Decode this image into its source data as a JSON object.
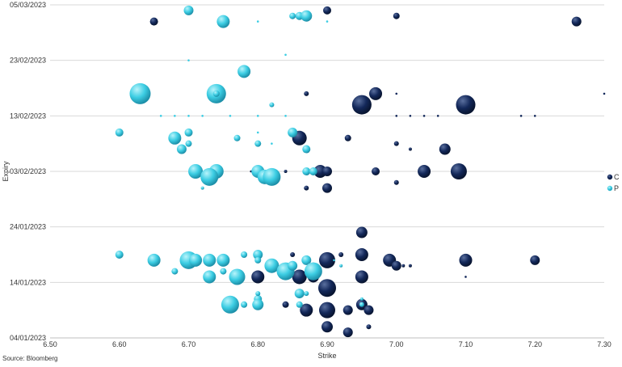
{
  "source": "Source: Bloomberg",
  "colors": {
    "C": "#13285a",
    "P": "#3ccde3"
  },
  "chart_data": {
    "type": "scatter",
    "subtype": "bubble",
    "title": "",
    "xlabel": "Strike",
    "ylabel": "Expiry",
    "xlim": [
      6.5,
      7.3
    ],
    "ylim": [
      "2023-01-04",
      "2023-03-05"
    ],
    "x_ticks": [
      "6.50",
      "6.60",
      "6.70",
      "6.80",
      "6.90",
      "7.00",
      "7.10",
      "7.20",
      "7.30"
    ],
    "y_ticks": [
      "04/01/2023",
      "14/01/2023",
      "24/01/2023",
      "03/02/2023",
      "13/02/2023",
      "23/02/2023",
      "05/03/2023"
    ],
    "grid": "horizontal",
    "legend": {
      "position": "right",
      "entries": [
        "C",
        "P"
      ]
    },
    "series": [
      {
        "name": "C",
        "color": "#13285a",
        "points": [
          {
            "x": 6.65,
            "y": "2023-03-02",
            "s": 5
          },
          {
            "x": 6.9,
            "y": "2023-03-04",
            "s": 5
          },
          {
            "x": 7.0,
            "y": "2023-03-03",
            "s": 4
          },
          {
            "x": 7.26,
            "y": "2023-03-02",
            "s": 6
          },
          {
            "x": 6.87,
            "y": "2023-02-17",
            "s": 3
          },
          {
            "x": 6.95,
            "y": "2023-02-15",
            "s": 12
          },
          {
            "x": 6.97,
            "y": "2023-02-17",
            "s": 8
          },
          {
            "x": 7.1,
            "y": "2023-02-15",
            "s": 12
          },
          {
            "x": 7.0,
            "y": "2023-02-17",
            "s": 1
          },
          {
            "x": 7.3,
            "y": "2023-02-17",
            "s": 1
          },
          {
            "x": 7.0,
            "y": "2023-02-13",
            "s": 1
          },
          {
            "x": 7.02,
            "y": "2023-02-13",
            "s": 1
          },
          {
            "x": 7.04,
            "y": "2023-02-13",
            "s": 1
          },
          {
            "x": 7.06,
            "y": "2023-02-13",
            "s": 1
          },
          {
            "x": 7.18,
            "y": "2023-02-13",
            "s": 1
          },
          {
            "x": 7.2,
            "y": "2023-02-13",
            "s": 1
          },
          {
            "x": 6.86,
            "y": "2023-02-09",
            "s": 9
          },
          {
            "x": 6.93,
            "y": "2023-02-09",
            "s": 4
          },
          {
            "x": 7.0,
            "y": "2023-02-08",
            "s": 3
          },
          {
            "x": 7.02,
            "y": "2023-02-07",
            "s": 2
          },
          {
            "x": 7.07,
            "y": "2023-02-07",
            "s": 7
          },
          {
            "x": 6.87,
            "y": "2023-02-07",
            "s": 4
          },
          {
            "x": 6.89,
            "y": "2023-02-03",
            "s": 8
          },
          {
            "x": 6.9,
            "y": "2023-02-03",
            "s": 6
          },
          {
            "x": 6.97,
            "y": "2023-02-03",
            "s": 5
          },
          {
            "x": 7.04,
            "y": "2023-02-03",
            "s": 8
          },
          {
            "x": 7.09,
            "y": "2023-02-03",
            "s": 10
          },
          {
            "x": 7.0,
            "y": "2023-02-01",
            "s": 3
          },
          {
            "x": 6.9,
            "y": "2023-01-31",
            "s": 6
          },
          {
            "x": 6.87,
            "y": "2023-01-31",
            "s": 3
          },
          {
            "x": 6.84,
            "y": "2023-02-03",
            "s": 2
          },
          {
            "x": 6.79,
            "y": "2023-02-03",
            "s": 1
          },
          {
            "x": 6.95,
            "y": "2023-01-23",
            "s": 7
          },
          {
            "x": 6.95,
            "y": "2023-01-19",
            "s": 8
          },
          {
            "x": 6.99,
            "y": "2023-01-18",
            "s": 8
          },
          {
            "x": 7.0,
            "y": "2023-01-17",
            "s": 6
          },
          {
            "x": 7.1,
            "y": "2023-01-18",
            "s": 8
          },
          {
            "x": 7.2,
            "y": "2023-01-18",
            "s": 6
          },
          {
            "x": 6.9,
            "y": "2023-01-18",
            "s": 10
          },
          {
            "x": 6.92,
            "y": "2023-01-19",
            "s": 3
          },
          {
            "x": 6.85,
            "y": "2023-01-19",
            "s": 3
          },
          {
            "x": 6.88,
            "y": "2023-01-17",
            "s": 4
          },
          {
            "x": 6.86,
            "y": "2023-01-15",
            "s": 9
          },
          {
            "x": 6.88,
            "y": "2023-01-15",
            "s": 7
          },
          {
            "x": 6.95,
            "y": "2023-01-15",
            "s": 8
          },
          {
            "x": 6.8,
            "y": "2023-01-15",
            "s": 8
          },
          {
            "x": 6.9,
            "y": "2023-01-13",
            "s": 11
          },
          {
            "x": 6.9,
            "y": "2023-01-09",
            "s": 10
          },
          {
            "x": 6.87,
            "y": "2023-01-09",
            "s": 8
          },
          {
            "x": 6.93,
            "y": "2023-01-09",
            "s": 6
          },
          {
            "x": 6.95,
            "y": "2023-01-10",
            "s": 7
          },
          {
            "x": 6.96,
            "y": "2023-01-09",
            "s": 6
          },
          {
            "x": 6.9,
            "y": "2023-01-06",
            "s": 7
          },
          {
            "x": 6.93,
            "y": "2023-01-05",
            "s": 6
          },
          {
            "x": 6.96,
            "y": "2023-01-06",
            "s": 3
          },
          {
            "x": 6.84,
            "y": "2023-01-10",
            "s": 4
          },
          {
            "x": 7.01,
            "y": "2023-01-17",
            "s": 2
          },
          {
            "x": 7.02,
            "y": "2023-01-17",
            "s": 2
          },
          {
            "x": 7.1,
            "y": "2023-01-15",
            "s": 1
          }
        ]
      },
      {
        "name": "P",
        "color": "#3ccde3",
        "points": [
          {
            "x": 6.7,
            "y": "2023-03-04",
            "s": 6
          },
          {
            "x": 6.75,
            "y": "2023-03-02",
            "s": 8
          },
          {
            "x": 6.8,
            "y": "2023-03-02",
            "s": 1
          },
          {
            "x": 6.85,
            "y": "2023-03-03",
            "s": 4
          },
          {
            "x": 6.86,
            "y": "2023-03-03",
            "s": 5
          },
          {
            "x": 6.87,
            "y": "2023-03-03",
            "s": 7
          },
          {
            "x": 6.9,
            "y": "2023-03-02",
            "s": 1
          },
          {
            "x": 6.84,
            "y": "2023-02-24",
            "s": 1
          },
          {
            "x": 6.7,
            "y": "2023-02-23",
            "s": 1
          },
          {
            "x": 6.78,
            "y": "2023-02-21",
            "s": 8
          },
          {
            "x": 6.63,
            "y": "2023-02-17",
            "s": 13
          },
          {
            "x": 6.74,
            "y": "2023-02-17",
            "s": 12
          },
          {
            "x": 6.74,
            "y": "2023-02-17",
            "s": 4
          },
          {
            "x": 6.82,
            "y": "2023-02-15",
            "s": 3
          },
          {
            "x": 6.66,
            "y": "2023-02-13",
            "s": 1
          },
          {
            "x": 6.68,
            "y": "2023-02-13",
            "s": 1
          },
          {
            "x": 6.7,
            "y": "2023-02-13",
            "s": 1
          },
          {
            "x": 6.72,
            "y": "2023-02-13",
            "s": 1
          },
          {
            "x": 6.76,
            "y": "2023-02-13",
            "s": 1
          },
          {
            "x": 6.8,
            "y": "2023-02-13",
            "s": 1
          },
          {
            "x": 6.84,
            "y": "2023-02-13",
            "s": 1
          },
          {
            "x": 6.6,
            "y": "2023-02-10",
            "s": 5
          },
          {
            "x": 6.68,
            "y": "2023-02-09",
            "s": 8
          },
          {
            "x": 6.7,
            "y": "2023-02-10",
            "s": 5
          },
          {
            "x": 6.69,
            "y": "2023-02-07",
            "s": 6
          },
          {
            "x": 6.7,
            "y": "2023-02-08",
            "s": 4
          },
          {
            "x": 6.77,
            "y": "2023-02-09",
            "s": 4
          },
          {
            "x": 6.8,
            "y": "2023-02-08",
            "s": 4
          },
          {
            "x": 6.82,
            "y": "2023-02-08",
            "s": 1
          },
          {
            "x": 6.8,
            "y": "2023-02-10",
            "s": 1
          },
          {
            "x": 6.85,
            "y": "2023-02-10",
            "s": 6
          },
          {
            "x": 6.87,
            "y": "2023-02-07",
            "s": 5
          },
          {
            "x": 6.71,
            "y": "2023-02-03",
            "s": 9
          },
          {
            "x": 6.74,
            "y": "2023-02-03",
            "s": 9
          },
          {
            "x": 6.73,
            "y": "2023-02-02",
            "s": 11
          },
          {
            "x": 6.72,
            "y": "2023-01-31",
            "s": 2
          },
          {
            "x": 6.8,
            "y": "2023-02-03",
            "s": 8
          },
          {
            "x": 6.81,
            "y": "2023-02-02",
            "s": 9
          },
          {
            "x": 6.82,
            "y": "2023-02-02",
            "s": 11
          },
          {
            "x": 6.87,
            "y": "2023-02-03",
            "s": 5
          },
          {
            "x": 6.88,
            "y": "2023-02-03",
            "s": 5
          },
          {
            "x": 6.6,
            "y": "2023-01-19",
            "s": 5
          },
          {
            "x": 6.65,
            "y": "2023-01-18",
            "s": 8
          },
          {
            "x": 6.68,
            "y": "2023-01-16",
            "s": 4
          },
          {
            "x": 6.7,
            "y": "2023-01-18",
            "s": 11
          },
          {
            "x": 6.71,
            "y": "2023-01-18",
            "s": 8
          },
          {
            "x": 6.73,
            "y": "2023-01-18",
            "s": 8
          },
          {
            "x": 6.75,
            "y": "2023-01-18",
            "s": 8
          },
          {
            "x": 6.78,
            "y": "2023-01-19",
            "s": 4
          },
          {
            "x": 6.8,
            "y": "2023-01-19",
            "s": 6
          },
          {
            "x": 6.8,
            "y": "2023-01-18",
            "s": 4
          },
          {
            "x": 6.82,
            "y": "2023-01-17",
            "s": 9
          },
          {
            "x": 6.73,
            "y": "2023-01-15",
            "s": 8
          },
          {
            "x": 6.75,
            "y": "2023-01-16",
            "s": 4
          },
          {
            "x": 6.77,
            "y": "2023-01-15",
            "s": 10
          },
          {
            "x": 6.84,
            "y": "2023-01-16",
            "s": 11
          },
          {
            "x": 6.85,
            "y": "2023-01-17",
            "s": 6
          },
          {
            "x": 6.87,
            "y": "2023-01-18",
            "s": 6
          },
          {
            "x": 6.88,
            "y": "2023-01-16",
            "s": 11
          },
          {
            "x": 6.76,
            "y": "2023-01-10",
            "s": 11
          },
          {
            "x": 6.78,
            "y": "2023-01-10",
            "s": 4
          },
          {
            "x": 6.8,
            "y": "2023-01-11",
            "s": 5
          },
          {
            "x": 6.8,
            "y": "2023-01-10",
            "s": 7
          },
          {
            "x": 6.86,
            "y": "2023-01-10",
            "s": 4
          },
          {
            "x": 6.86,
            "y": "2023-01-12",
            "s": 6
          },
          {
            "x": 6.87,
            "y": "2023-01-12",
            "s": 3
          },
          {
            "x": 6.95,
            "y": "2023-01-10",
            "s": 3
          },
          {
            "x": 6.8,
            "y": "2023-01-12",
            "s": 3
          },
          {
            "x": 6.91,
            "y": "2023-01-18",
            "s": 1
          },
          {
            "x": 6.92,
            "y": "2023-01-17",
            "s": 2
          },
          {
            "x": 6.95,
            "y": "2023-01-11",
            "s": 2
          }
        ]
      }
    ]
  }
}
